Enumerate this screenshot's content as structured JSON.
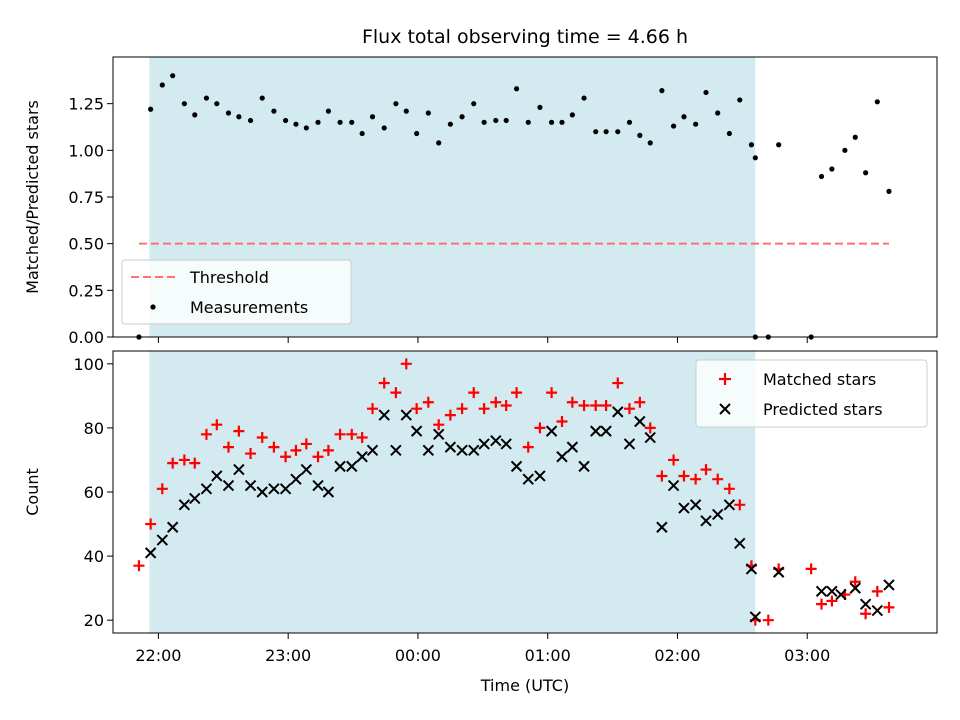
{
  "chart_data": {
    "title": "Flux total observing time = 4.66 h",
    "x_axis": {
      "label": "Time (UTC)",
      "ticks": [
        "22:00",
        "23:00",
        "00:00",
        "01:00",
        "02:00",
        "03:00"
      ],
      "tick_values_hours": [
        22,
        23,
        24,
        25,
        26,
        27
      ],
      "range_hours": [
        21.65,
        28.0
      ]
    },
    "observing_window_hours": [
      21.93,
      26.6
    ],
    "observing_window_color": "#d3eaf0",
    "panels": [
      {
        "id": "ratio",
        "type": "scatter",
        "ylabel": "Matched/Predicted stars",
        "ylim": [
          0,
          1.5
        ],
        "yticks": [
          "0.00",
          "0.25",
          "0.50",
          "0.75",
          "1.00",
          "1.25"
        ],
        "ytick_values": [
          0,
          0.25,
          0.5,
          0.75,
          1.0,
          1.25
        ],
        "threshold": {
          "name": "Threshold",
          "value": 0.5,
          "x_range": [
            21.85,
            27.63
          ],
          "color": "#ff7070"
        },
        "legend_position": "lower-left",
        "series": [
          {
            "name": "Measurements",
            "marker": "dot",
            "color": "#000000",
            "points": [
              [
                21.85,
                0.0
              ],
              [
                21.94,
                1.22
              ],
              [
                22.03,
                1.35
              ],
              [
                22.11,
                1.4
              ],
              [
                22.2,
                1.25
              ],
              [
                22.28,
                1.19
              ],
              [
                22.37,
                1.28
              ],
              [
                22.45,
                1.25
              ],
              [
                22.54,
                1.2
              ],
              [
                22.62,
                1.18
              ],
              [
                22.71,
                1.16
              ],
              [
                22.8,
                1.28
              ],
              [
                22.89,
                1.21
              ],
              [
                22.98,
                1.16
              ],
              [
                23.06,
                1.14
              ],
              [
                23.14,
                1.12
              ],
              [
                23.23,
                1.15
              ],
              [
                23.31,
                1.21
              ],
              [
                23.4,
                1.15
              ],
              [
                23.49,
                1.15
              ],
              [
                23.57,
                1.09
              ],
              [
                23.65,
                1.18
              ],
              [
                23.74,
                1.12
              ],
              [
                23.83,
                1.25
              ],
              [
                23.91,
                1.21
              ],
              [
                23.99,
                1.09
              ],
              [
                24.08,
                1.2
              ],
              [
                24.16,
                1.04
              ],
              [
                24.25,
                1.14
              ],
              [
                24.34,
                1.18
              ],
              [
                24.43,
                1.25
              ],
              [
                24.51,
                1.15
              ],
              [
                24.6,
                1.16
              ],
              [
                24.68,
                1.16
              ],
              [
                24.76,
                1.33
              ],
              [
                24.85,
                1.15
              ],
              [
                24.94,
                1.23
              ],
              [
                25.03,
                1.15
              ],
              [
                25.11,
                1.15
              ],
              [
                25.19,
                1.19
              ],
              [
                25.28,
                1.28
              ],
              [
                25.37,
                1.1
              ],
              [
                25.45,
                1.1
              ],
              [
                25.54,
                1.1
              ],
              [
                25.63,
                1.15
              ],
              [
                25.71,
                1.08
              ],
              [
                25.79,
                1.04
              ],
              [
                25.88,
                1.32
              ],
              [
                25.97,
                1.13
              ],
              [
                26.05,
                1.18
              ],
              [
                26.14,
                1.14
              ],
              [
                26.22,
                1.31
              ],
              [
                26.31,
                1.2
              ],
              [
                26.4,
                1.09
              ],
              [
                26.48,
                1.27
              ],
              [
                26.57,
                1.03
              ],
              [
                26.6,
                0.96
              ],
              [
                26.6,
                0.0
              ],
              [
                26.7,
                0.0
              ],
              [
                26.78,
                1.03
              ],
              [
                27.03,
                0.0
              ],
              [
                27.11,
                0.86
              ],
              [
                27.19,
                0.9
              ],
              [
                27.29,
                1.0
              ],
              [
                27.37,
                1.07
              ],
              [
                27.45,
                0.88
              ],
              [
                27.54,
                1.26
              ],
              [
                27.63,
                0.78
              ]
            ]
          }
        ]
      },
      {
        "id": "counts",
        "type": "scatter",
        "ylabel": "Count",
        "ylim": [
          16,
          104
        ],
        "yticks": [
          "20",
          "40",
          "60",
          "80",
          "100"
        ],
        "ytick_values": [
          20,
          40,
          60,
          80,
          100
        ],
        "legend_position": "upper-right",
        "series": [
          {
            "name": "Matched stars",
            "marker": "plus",
            "color": "#ff0000",
            "points": [
              [
                21.85,
                37
              ],
              [
                21.94,
                50
              ],
              [
                22.03,
                61
              ],
              [
                22.11,
                69
              ],
              [
                22.2,
                70
              ],
              [
                22.28,
                69
              ],
              [
                22.37,
                78
              ],
              [
                22.45,
                81
              ],
              [
                22.54,
                74
              ],
              [
                22.62,
                79
              ],
              [
                22.71,
                72
              ],
              [
                22.8,
                77
              ],
              [
                22.89,
                74
              ],
              [
                22.98,
                71
              ],
              [
                23.06,
                73
              ],
              [
                23.14,
                75
              ],
              [
                23.23,
                71
              ],
              [
                23.31,
                73
              ],
              [
                23.4,
                78
              ],
              [
                23.49,
                78
              ],
              [
                23.57,
                77
              ],
              [
                23.65,
                86
              ],
              [
                23.74,
                94
              ],
              [
                23.83,
                91
              ],
              [
                23.91,
                100
              ],
              [
                23.99,
                86
              ],
              [
                24.08,
                88
              ],
              [
                24.16,
                81
              ],
              [
                24.25,
                84
              ],
              [
                24.34,
                86
              ],
              [
                24.43,
                91
              ],
              [
                24.51,
                86
              ],
              [
                24.6,
                88
              ],
              [
                24.68,
                87
              ],
              [
                24.76,
                91
              ],
              [
                24.85,
                74
              ],
              [
                24.94,
                80
              ],
              [
                25.03,
                91
              ],
              [
                25.11,
                82
              ],
              [
                25.19,
                88
              ],
              [
                25.28,
                87
              ],
              [
                25.37,
                87
              ],
              [
                25.45,
                87
              ],
              [
                25.54,
                94
              ],
              [
                25.63,
                86
              ],
              [
                25.71,
                88
              ],
              [
                25.79,
                80
              ],
              [
                25.88,
                65
              ],
              [
                25.97,
                70
              ],
              [
                26.05,
                65
              ],
              [
                26.14,
                64
              ],
              [
                26.22,
                67
              ],
              [
                26.31,
                64
              ],
              [
                26.4,
                61
              ],
              [
                26.48,
                56
              ],
              [
                26.57,
                37
              ],
              [
                26.6,
                20
              ],
              [
                26.7,
                20
              ],
              [
                26.78,
                36
              ],
              [
                27.03,
                36
              ],
              [
                27.11,
                25
              ],
              [
                27.19,
                26
              ],
              [
                27.29,
                28
              ],
              [
                27.37,
                32
              ],
              [
                27.45,
                22
              ],
              [
                27.54,
                29
              ],
              [
                27.63,
                24
              ]
            ]
          },
          {
            "name": "Predicted stars",
            "marker": "x",
            "color": "#000000",
            "points": [
              [
                21.94,
                41
              ],
              [
                22.03,
                45
              ],
              [
                22.11,
                49
              ],
              [
                22.2,
                56
              ],
              [
                22.28,
                58
              ],
              [
                22.37,
                61
              ],
              [
                22.45,
                65
              ],
              [
                22.54,
                62
              ],
              [
                22.62,
                67
              ],
              [
                22.71,
                62
              ],
              [
                22.8,
                60
              ],
              [
                22.89,
                61
              ],
              [
                22.98,
                61
              ],
              [
                23.06,
                64
              ],
              [
                23.14,
                67
              ],
              [
                23.23,
                62
              ],
              [
                23.31,
                60
              ],
              [
                23.4,
                68
              ],
              [
                23.49,
                68
              ],
              [
                23.57,
                71
              ],
              [
                23.65,
                73
              ],
              [
                23.74,
                84
              ],
              [
                23.83,
                73
              ],
              [
                23.91,
                84
              ],
              [
                23.99,
                79
              ],
              [
                24.08,
                73
              ],
              [
                24.16,
                78
              ],
              [
                24.25,
                74
              ],
              [
                24.34,
                73
              ],
              [
                24.43,
                73
              ],
              [
                24.51,
                75
              ],
              [
                24.6,
                76
              ],
              [
                24.68,
                75
              ],
              [
                24.76,
                68
              ],
              [
                24.85,
                64
              ],
              [
                24.94,
                65
              ],
              [
                25.03,
                79
              ],
              [
                25.11,
                71
              ],
              [
                25.19,
                74
              ],
              [
                25.28,
                68
              ],
              [
                25.37,
                79
              ],
              [
                25.45,
                79
              ],
              [
                25.54,
                85
              ],
              [
                25.63,
                75
              ],
              [
                25.71,
                82
              ],
              [
                25.79,
                77
              ],
              [
                25.88,
                49
              ],
              [
                25.97,
                62
              ],
              [
                26.05,
                55
              ],
              [
                26.14,
                56
              ],
              [
                26.22,
                51
              ],
              [
                26.31,
                53
              ],
              [
                26.4,
                56
              ],
              [
                26.48,
                44
              ],
              [
                26.57,
                36
              ],
              [
                26.6,
                21
              ],
              [
                26.78,
                35
              ],
              [
                27.11,
                29
              ],
              [
                27.19,
                29
              ],
              [
                27.26,
                28
              ],
              [
                27.37,
                30
              ],
              [
                27.45,
                25
              ],
              [
                27.54,
                23
              ],
              [
                27.63,
                31
              ]
            ]
          }
        ]
      }
    ]
  }
}
